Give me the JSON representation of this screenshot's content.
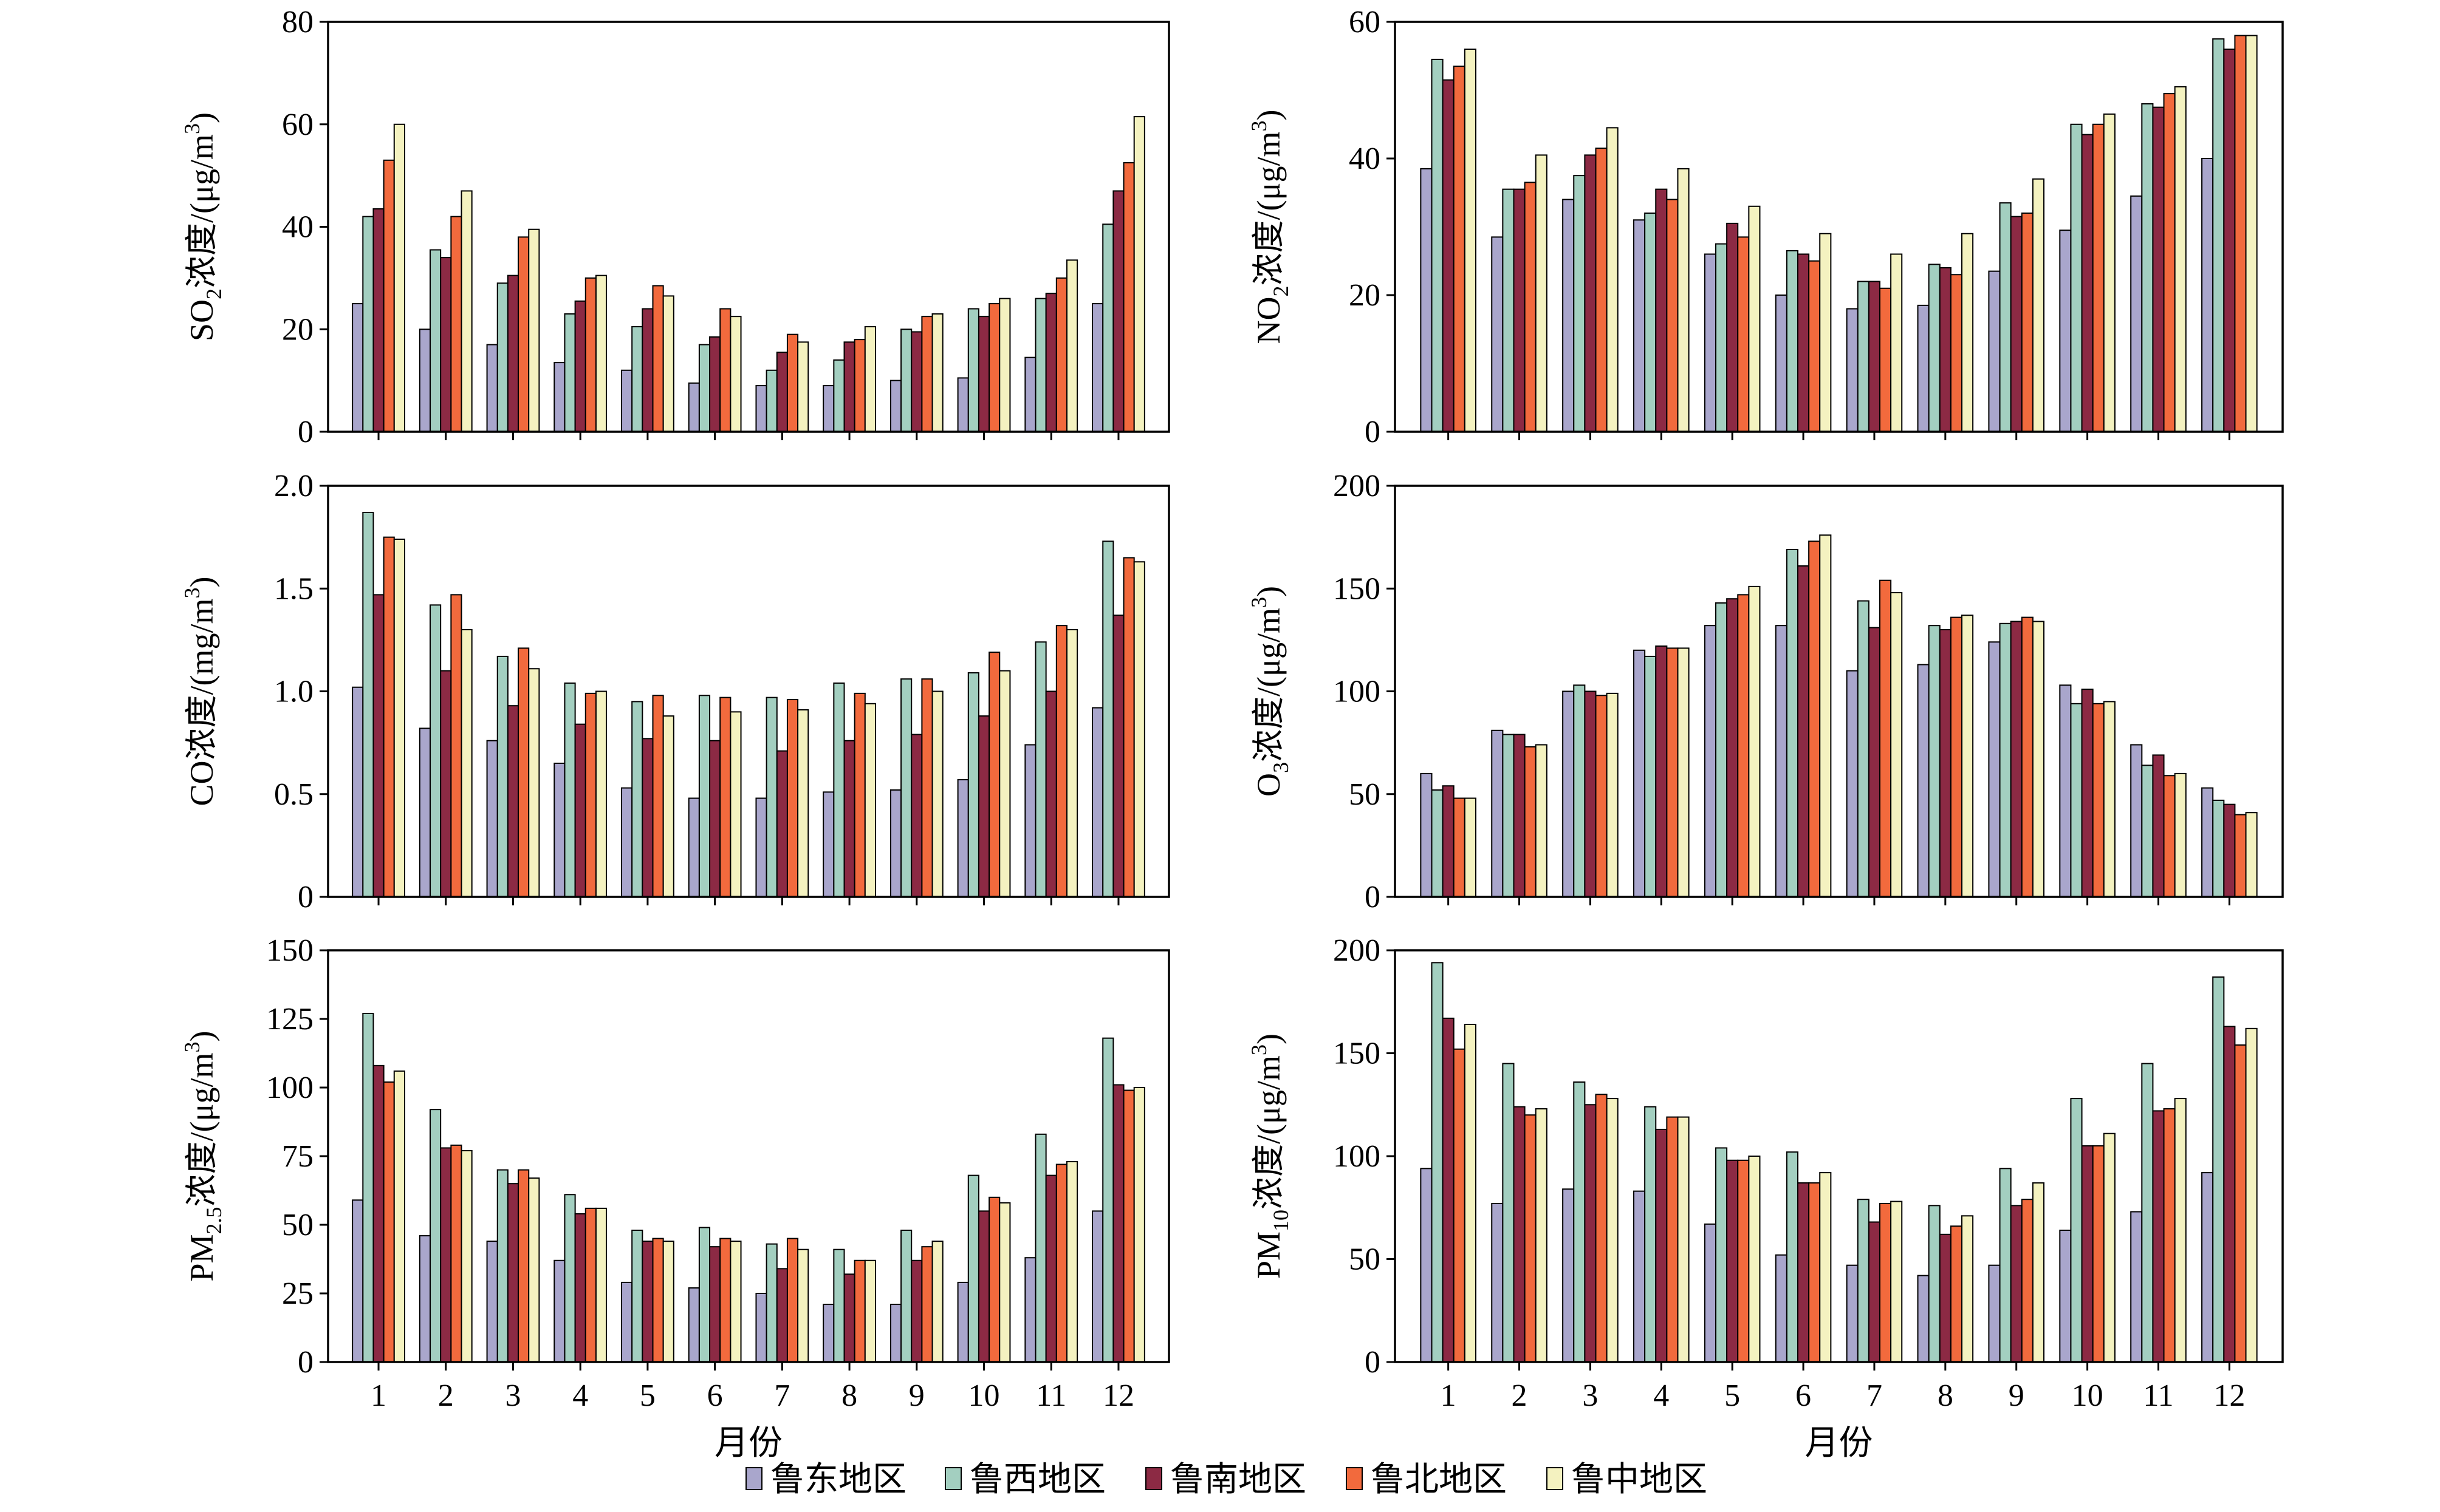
{
  "series_colors": [
    "#a9a6cc",
    "#a3cfc0",
    "#8c2a44",
    "#f26a3d",
    "#f4f2c0"
  ],
  "legend": {
    "items": [
      "鲁东地区",
      "鲁西地区",
      "鲁南地区",
      "鲁北地区",
      "鲁中地区"
    ]
  },
  "chart_data": [
    {
      "type": "bar",
      "ylabel_main": "SO",
      "ylabel_sub": "2",
      "ylabel_rest": "浓度/(μg/m",
      "ylabel_sup": "3",
      "ylabel_end": ")",
      "ylim": [
        0,
        80
      ],
      "yticks": [
        0,
        20,
        40,
        60,
        80
      ],
      "ytick_labels": [
        "0",
        "20",
        "40",
        "60",
        "80"
      ],
      "categories": [
        "1",
        "2",
        "3",
        "4",
        "5",
        "6",
        "7",
        "8",
        "9",
        "10",
        "11",
        "12"
      ],
      "xlabel": "",
      "series": [
        {
          "name": "鲁东地区",
          "values": [
            25,
            20,
            17,
            13.5,
            12,
            9.5,
            9,
            9,
            10,
            10.5,
            14.5,
            25
          ]
        },
        {
          "name": "鲁西地区",
          "values": [
            42,
            35.5,
            29,
            23,
            20.5,
            17,
            12,
            14,
            20,
            24,
            26,
            40.5
          ]
        },
        {
          "name": "鲁南地区",
          "values": [
            43.5,
            34,
            30.5,
            25.5,
            24,
            18.5,
            15.5,
            17.5,
            19.5,
            22.5,
            27,
            47
          ]
        },
        {
          "name": "鲁北地区",
          "values": [
            53,
            42,
            38,
            30,
            28.5,
            24,
            19,
            18,
            22.5,
            25,
            30,
            52.5
          ]
        },
        {
          "name": "鲁中地区",
          "values": [
            60,
            47,
            39.5,
            30.5,
            26.5,
            22.5,
            17.5,
            20.5,
            23,
            26,
            33.5,
            61.5
          ]
        }
      ]
    },
    {
      "type": "bar",
      "ylabel_main": "NO",
      "ylabel_sub": "2",
      "ylabel_rest": "浓度/(μg/m",
      "ylabel_sup": "3",
      "ylabel_end": ")",
      "ylim": [
        0,
        60
      ],
      "yticks": [
        0,
        20,
        40,
        60
      ],
      "ytick_labels": [
        "0",
        "20",
        "40",
        "60"
      ],
      "categories": [
        "1",
        "2",
        "3",
        "4",
        "5",
        "6",
        "7",
        "8",
        "9",
        "10",
        "11",
        "12"
      ],
      "xlabel": "",
      "series": [
        {
          "name": "鲁东地区",
          "values": [
            38.5,
            28.5,
            34,
            31,
            26,
            20,
            18,
            18.5,
            23.5,
            29.5,
            34.5,
            40
          ]
        },
        {
          "name": "鲁西地区",
          "values": [
            54.5,
            35.5,
            37.5,
            32,
            27.5,
            26.5,
            22,
            24.5,
            33.5,
            45,
            48,
            57.5
          ]
        },
        {
          "name": "鲁南地区",
          "values": [
            51.5,
            35.5,
            40.5,
            35.5,
            30.5,
            26,
            22,
            24,
            31.5,
            43.5,
            47.5,
            56
          ]
        },
        {
          "name": "鲁北地区",
          "values": [
            53.5,
            36.5,
            41.5,
            34,
            28.5,
            25,
            21,
            23,
            32,
            45,
            49.5,
            58
          ]
        },
        {
          "name": "鲁中地区",
          "values": [
            56,
            40.5,
            44.5,
            38.5,
            33,
            29,
            26,
            29,
            37,
            46.5,
            50.5,
            58
          ]
        }
      ]
    },
    {
      "type": "bar",
      "ylabel_main": "CO",
      "ylabel_sub": "",
      "ylabel_rest": "浓度/(mg/m",
      "ylabel_sup": "3",
      "ylabel_end": ")",
      "ylim": [
        0,
        2.0
      ],
      "yticks": [
        0,
        0.5,
        1.0,
        1.5,
        2.0
      ],
      "ytick_labels": [
        "0",
        "0.5",
        "1.0",
        "1.5",
        "2.0"
      ],
      "categories": [
        "1",
        "2",
        "3",
        "4",
        "5",
        "6",
        "7",
        "8",
        "9",
        "10",
        "11",
        "12"
      ],
      "xlabel": "",
      "series": [
        {
          "name": "鲁东地区",
          "values": [
            1.02,
            0.82,
            0.76,
            0.65,
            0.53,
            0.48,
            0.48,
            0.51,
            0.52,
            0.57,
            0.74,
            0.92
          ]
        },
        {
          "name": "鲁西地区",
          "values": [
            1.87,
            1.42,
            1.17,
            1.04,
            0.95,
            0.98,
            0.97,
            1.04,
            1.06,
            1.09,
            1.24,
            1.73
          ]
        },
        {
          "name": "鲁南地区",
          "values": [
            1.47,
            1.1,
            0.93,
            0.84,
            0.77,
            0.76,
            0.71,
            0.76,
            0.79,
            0.88,
            1.0,
            1.37
          ]
        },
        {
          "name": "鲁北地区",
          "values": [
            1.75,
            1.47,
            1.21,
            0.99,
            0.98,
            0.97,
            0.96,
            0.99,
            1.06,
            1.19,
            1.32,
            1.65
          ]
        },
        {
          "name": "鲁中地区",
          "values": [
            1.74,
            1.3,
            1.11,
            1.0,
            0.88,
            0.9,
            0.91,
            0.94,
            1.0,
            1.1,
            1.3,
            1.63
          ]
        }
      ]
    },
    {
      "type": "bar",
      "ylabel_main": "O",
      "ylabel_sub": "3",
      "ylabel_rest": "浓度/(μg/m",
      "ylabel_sup": "3",
      "ylabel_end": ")",
      "ylim": [
        0,
        200
      ],
      "yticks": [
        0,
        50,
        100,
        150,
        200
      ],
      "ytick_labels": [
        "0",
        "50",
        "100",
        "150",
        "200"
      ],
      "categories": [
        "1",
        "2",
        "3",
        "4",
        "5",
        "6",
        "7",
        "8",
        "9",
        "10",
        "11",
        "12"
      ],
      "xlabel": "",
      "series": [
        {
          "name": "鲁东地区",
          "values": [
            60,
            81,
            100,
            120,
            132,
            132,
            110,
            113,
            124,
            103,
            74,
            53
          ]
        },
        {
          "name": "鲁西地区",
          "values": [
            52,
            79,
            103,
            117,
            143,
            169,
            144,
            132,
            133,
            94,
            64,
            47
          ]
        },
        {
          "name": "鲁南地区",
          "values": [
            54,
            79,
            100,
            122,
            145,
            161,
            131,
            130,
            134,
            101,
            69,
            45
          ]
        },
        {
          "name": "鲁北地区",
          "values": [
            48,
            73,
            98,
            121,
            147,
            173,
            154,
            136,
            136,
            94,
            59,
            40
          ]
        },
        {
          "name": "鲁中地区",
          "values": [
            48,
            74,
            99,
            121,
            151,
            176,
            148,
            137,
            134,
            95,
            60,
            41
          ]
        }
      ]
    },
    {
      "type": "bar",
      "ylabel_main": "PM",
      "ylabel_sub": "2.5",
      "ylabel_rest": "浓度/(μg/m",
      "ylabel_sup": "3",
      "ylabel_end": ")",
      "ylim": [
        0,
        150
      ],
      "yticks": [
        0,
        25,
        50,
        75,
        100,
        125,
        150
      ],
      "ytick_labels": [
        "0",
        "25",
        "50",
        "75",
        "100",
        "125",
        "150"
      ],
      "categories": [
        "1",
        "2",
        "3",
        "4",
        "5",
        "6",
        "7",
        "8",
        "9",
        "10",
        "11",
        "12"
      ],
      "xlabel": "月份",
      "series": [
        {
          "name": "鲁东地区",
          "values": [
            59,
            46,
            44,
            37,
            29,
            27,
            25,
            21,
            21,
            29,
            38,
            55
          ]
        },
        {
          "name": "鲁西地区",
          "values": [
            127,
            92,
            70,
            61,
            48,
            49,
            43,
            41,
            48,
            68,
            83,
            118
          ]
        },
        {
          "name": "鲁南地区",
          "values": [
            108,
            78,
            65,
            54,
            44,
            42,
            34,
            32,
            37,
            55,
            68,
            101
          ]
        },
        {
          "name": "鲁北地区",
          "values": [
            102,
            79,
            70,
            56,
            45,
            45,
            45,
            37,
            42,
            60,
            72,
            99
          ]
        },
        {
          "name": "鲁中地区",
          "values": [
            106,
            77,
            67,
            56,
            44,
            44,
            41,
            37,
            44,
            58,
            73,
            100
          ]
        }
      ]
    },
    {
      "type": "bar",
      "ylabel_main": "PM",
      "ylabel_sub": "10",
      "ylabel_rest": "浓度/(μg/m",
      "ylabel_sup": "3",
      "ylabel_end": ")",
      "ylim": [
        0,
        200
      ],
      "yticks": [
        0,
        50,
        100,
        150,
        200
      ],
      "ytick_labels": [
        "0",
        "50",
        "100",
        "150",
        "200"
      ],
      "categories": [
        "1",
        "2",
        "3",
        "4",
        "5",
        "6",
        "7",
        "8",
        "9",
        "10",
        "11",
        "12"
      ],
      "xlabel": "月份",
      "series": [
        {
          "name": "鲁东地区",
          "values": [
            94,
            77,
            84,
            83,
            67,
            52,
            47,
            42,
            47,
            64,
            73,
            92
          ]
        },
        {
          "name": "鲁西地区",
          "values": [
            194,
            145,
            136,
            124,
            104,
            102,
            79,
            76,
            94,
            128,
            145,
            187
          ]
        },
        {
          "name": "鲁南地区",
          "values": [
            167,
            124,
            125,
            113,
            98,
            87,
            68,
            62,
            76,
            105,
            122,
            163
          ]
        },
        {
          "name": "鲁北地区",
          "values": [
            152,
            120,
            130,
            119,
            98,
            87,
            77,
            66,
            79,
            105,
            123,
            154
          ]
        },
        {
          "name": "鲁中地区",
          "values": [
            164,
            123,
            128,
            119,
            100,
            92,
            78,
            71,
            87,
            111,
            128,
            162
          ]
        }
      ]
    }
  ]
}
